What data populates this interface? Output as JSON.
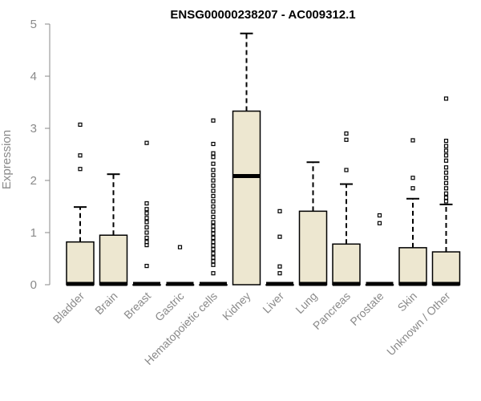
{
  "chart_data": {
    "type": "boxplot",
    "title": "ENSG00000238207 - AC009312.1",
    "xlabel": "",
    "ylabel": "Expression",
    "ylim": [
      0,
      5
    ],
    "yticks": [
      0,
      1,
      2,
      3,
      4,
      5
    ],
    "grid": false,
    "box_color": "#ede7d0",
    "outline_color": "#000000",
    "text_color": "#8a8a8a",
    "categories": [
      "Bladder",
      "Brain",
      "Breast",
      "Gastric",
      "Hematopoietic cells",
      "Kidney",
      "Liver",
      "Lung",
      "Pancreas",
      "Prostate",
      "Skin",
      "Unknown / Other"
    ],
    "boxes": [
      {
        "category": "Bladder",
        "min": 0,
        "q1": 0,
        "median": 0,
        "q3": 0.82,
        "max": 1.49,
        "outliers": [
          2.22,
          2.48,
          3.07
        ]
      },
      {
        "category": "Brain",
        "min": 0,
        "q1": 0,
        "median": 0,
        "q3": 0.95,
        "max": 2.12,
        "outliers": []
      },
      {
        "category": "Breast",
        "min": 0,
        "q1": 0,
        "median": 0,
        "q3": 0,
        "max": 0,
        "outliers": [
          0.36,
          0.76,
          0.82,
          0.9,
          1.0,
          1.1,
          1.2,
          1.28,
          1.37,
          1.45,
          1.56,
          2.72
        ]
      },
      {
        "category": "Gastric",
        "min": 0,
        "q1": 0,
        "median": 0,
        "q3": 0,
        "max": 0,
        "outliers": [
          0.72
        ]
      },
      {
        "category": "Hematopoietic cells",
        "min": 0,
        "q1": 0,
        "median": 0,
        "q3": 0,
        "max": 0,
        "outliers": [
          0.22,
          0.38,
          0.45,
          0.52,
          0.6,
          0.68,
          0.75,
          0.82,
          0.9,
          0.98,
          1.05,
          1.12,
          1.2,
          1.3,
          1.4,
          1.5,
          1.6,
          1.7,
          1.8,
          1.9,
          2.0,
          2.1,
          2.2,
          2.32,
          2.45,
          2.52,
          2.7,
          3.15
        ]
      },
      {
        "category": "Kidney",
        "min": 0,
        "q1": 0,
        "median": 2.07,
        "q3": 3.33,
        "max": 4.82,
        "outliers": []
      },
      {
        "category": "Liver",
        "min": 0,
        "q1": 0,
        "median": 0,
        "q3": 0,
        "max": 0,
        "outliers": [
          0.22,
          0.35,
          0.92,
          1.41
        ]
      },
      {
        "category": "Lung",
        "min": 0,
        "q1": 0,
        "median": 0,
        "q3": 1.41,
        "max": 2.35,
        "outliers": []
      },
      {
        "category": "Pancreas",
        "min": 0,
        "q1": 0,
        "median": 0,
        "q3": 0.78,
        "max": 1.93,
        "outliers": [
          2.2,
          2.78,
          2.9
        ]
      },
      {
        "category": "Prostate",
        "min": 0,
        "q1": 0,
        "median": 0,
        "q3": 0,
        "max": 0,
        "outliers": [
          1.18,
          1.33
        ]
      },
      {
        "category": "Skin",
        "min": 0,
        "q1": 0,
        "median": 0,
        "q3": 0.71,
        "max": 1.65,
        "outliers": [
          1.85,
          2.05,
          2.77
        ]
      },
      {
        "category": "Unknown / Other",
        "min": 0,
        "q1": 0,
        "median": 0,
        "q3": 0.63,
        "max": 1.54,
        "outliers": [
          1.6,
          1.67,
          1.75,
          1.85,
          1.95,
          2.05,
          2.15,
          2.25,
          2.38,
          2.48,
          2.57,
          2.66,
          2.76,
          3.57
        ]
      }
    ]
  }
}
